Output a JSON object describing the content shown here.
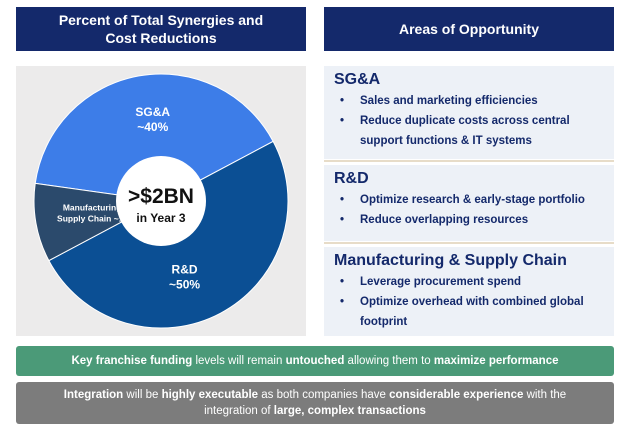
{
  "headers": {
    "left_title": "Percent of Total Synergies and\nCost Reductions",
    "right_title": "Areas of Opportunity"
  },
  "chart_data": {
    "type": "pie",
    "title": "Percent of Total Synergies and Cost Reductions",
    "center_label_main": ">$2BN",
    "center_label_sub": "in Year 3",
    "slices": [
      {
        "label": "SG&A",
        "value_label": "~40%",
        "value": 40,
        "color": "#3d7de8"
      },
      {
        "label": "R&D",
        "value_label": "~50%",
        "value": 50,
        "color": "#0b4f94"
      },
      {
        "label": "Manufacturing & Supply Chain",
        "value_label": "~10%",
        "value": 10,
        "color": "#2b4a6c"
      }
    ],
    "slice_text": {
      "sga": [
        "SG&A",
        "~40%"
      ],
      "rd": [
        "R&D",
        "~50%"
      ],
      "mfg": [
        "Manufacturing &",
        "Supply Chain ~10%"
      ]
    }
  },
  "areas": {
    "sga": {
      "title": "SG&A",
      "bullets": [
        "Sales and marketing efficiencies",
        "Reduce duplicate costs across central support functions & IT systems"
      ]
    },
    "rd": {
      "title": "R&D",
      "bullets": [
        "Optimize research & early-stage portfolio",
        "Reduce overlapping resources"
      ]
    },
    "mfg": {
      "title": "Manufacturing & Supply Chain",
      "bullets": [
        "Leverage procurement spend",
        "Optimize overhead with combined global footprint"
      ]
    }
  },
  "banners": {
    "green": {
      "p1": "Key franchise funding",
      "p2": " levels will remain ",
      "p3": "untouched",
      "p4": "  allowing them to ",
      "p5": "maximize performance"
    },
    "gray": {
      "p1": "Integration",
      "p2": " will be ",
      "p3": "highly executable",
      "p4": " as both companies have ",
      "p5": "considerable experience",
      "p6": " with the integration of ",
      "p7": "large, complex transactions"
    },
    "bullet_char": "•"
  },
  "colors": {
    "header_bg": "#14296b",
    "green_banner": "#4b9a78",
    "gray_banner": "#7c7c7c",
    "panel_bg": "#ecebeb"
  }
}
